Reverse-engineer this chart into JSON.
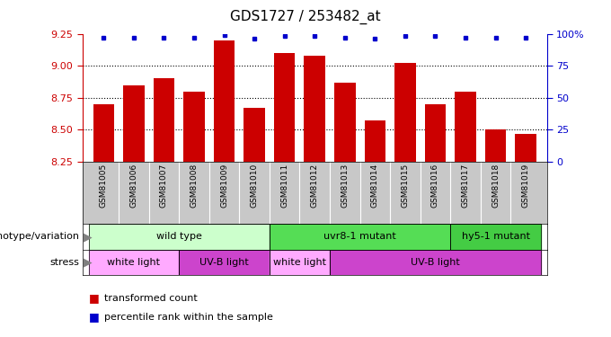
{
  "title": "GDS1727 / 253482_at",
  "samples": [
    "GSM81005",
    "GSM81006",
    "GSM81007",
    "GSM81008",
    "GSM81009",
    "GSM81010",
    "GSM81011",
    "GSM81012",
    "GSM81013",
    "GSM81014",
    "GSM81015",
    "GSM81016",
    "GSM81017",
    "GSM81018",
    "GSM81019"
  ],
  "bar_values": [
    8.7,
    8.85,
    8.9,
    8.8,
    9.2,
    8.67,
    9.1,
    9.08,
    8.87,
    8.57,
    9.02,
    8.7,
    8.8,
    8.5,
    8.47
  ],
  "percentile_values": [
    97,
    97,
    97,
    97,
    99,
    96,
    98,
    98,
    97,
    96,
    98,
    98,
    97,
    97,
    97
  ],
  "ylim_left": [
    8.25,
    9.25
  ],
  "ylim_right": [
    0,
    100
  ],
  "yticks_left": [
    8.25,
    8.5,
    8.75,
    9.0,
    9.25
  ],
  "yticks_right": [
    0,
    25,
    50,
    75,
    100
  ],
  "grid_lines": [
    9.0,
    8.75,
    8.5
  ],
  "bar_color": "#cc0000",
  "percentile_color": "#0000cc",
  "ticklabel_bg": "#c8c8c8",
  "genotype_groups": [
    {
      "label": "wild type",
      "start": 0,
      "end": 6,
      "color": "#ccffcc"
    },
    {
      "label": "uvr8-1 mutant",
      "start": 6,
      "end": 12,
      "color": "#55dd55"
    },
    {
      "label": "hy5-1 mutant",
      "start": 12,
      "end": 15,
      "color": "#44cc44"
    }
  ],
  "stress_groups": [
    {
      "label": "white light",
      "start": 0,
      "end": 3,
      "color": "#ffaaff"
    },
    {
      "label": "UV-B light",
      "start": 3,
      "end": 6,
      "color": "#cc44cc"
    },
    {
      "label": "white light",
      "start": 6,
      "end": 8,
      "color": "#ffaaff"
    },
    {
      "label": "UV-B light",
      "start": 8,
      "end": 15,
      "color": "#cc44cc"
    }
  ],
  "legend_items": [
    {
      "label": "transformed count",
      "color": "#cc0000"
    },
    {
      "label": "percentile rank within the sample",
      "color": "#0000cc"
    }
  ],
  "tick_color_left": "#cc0000",
  "tick_color_right": "#0000cc"
}
